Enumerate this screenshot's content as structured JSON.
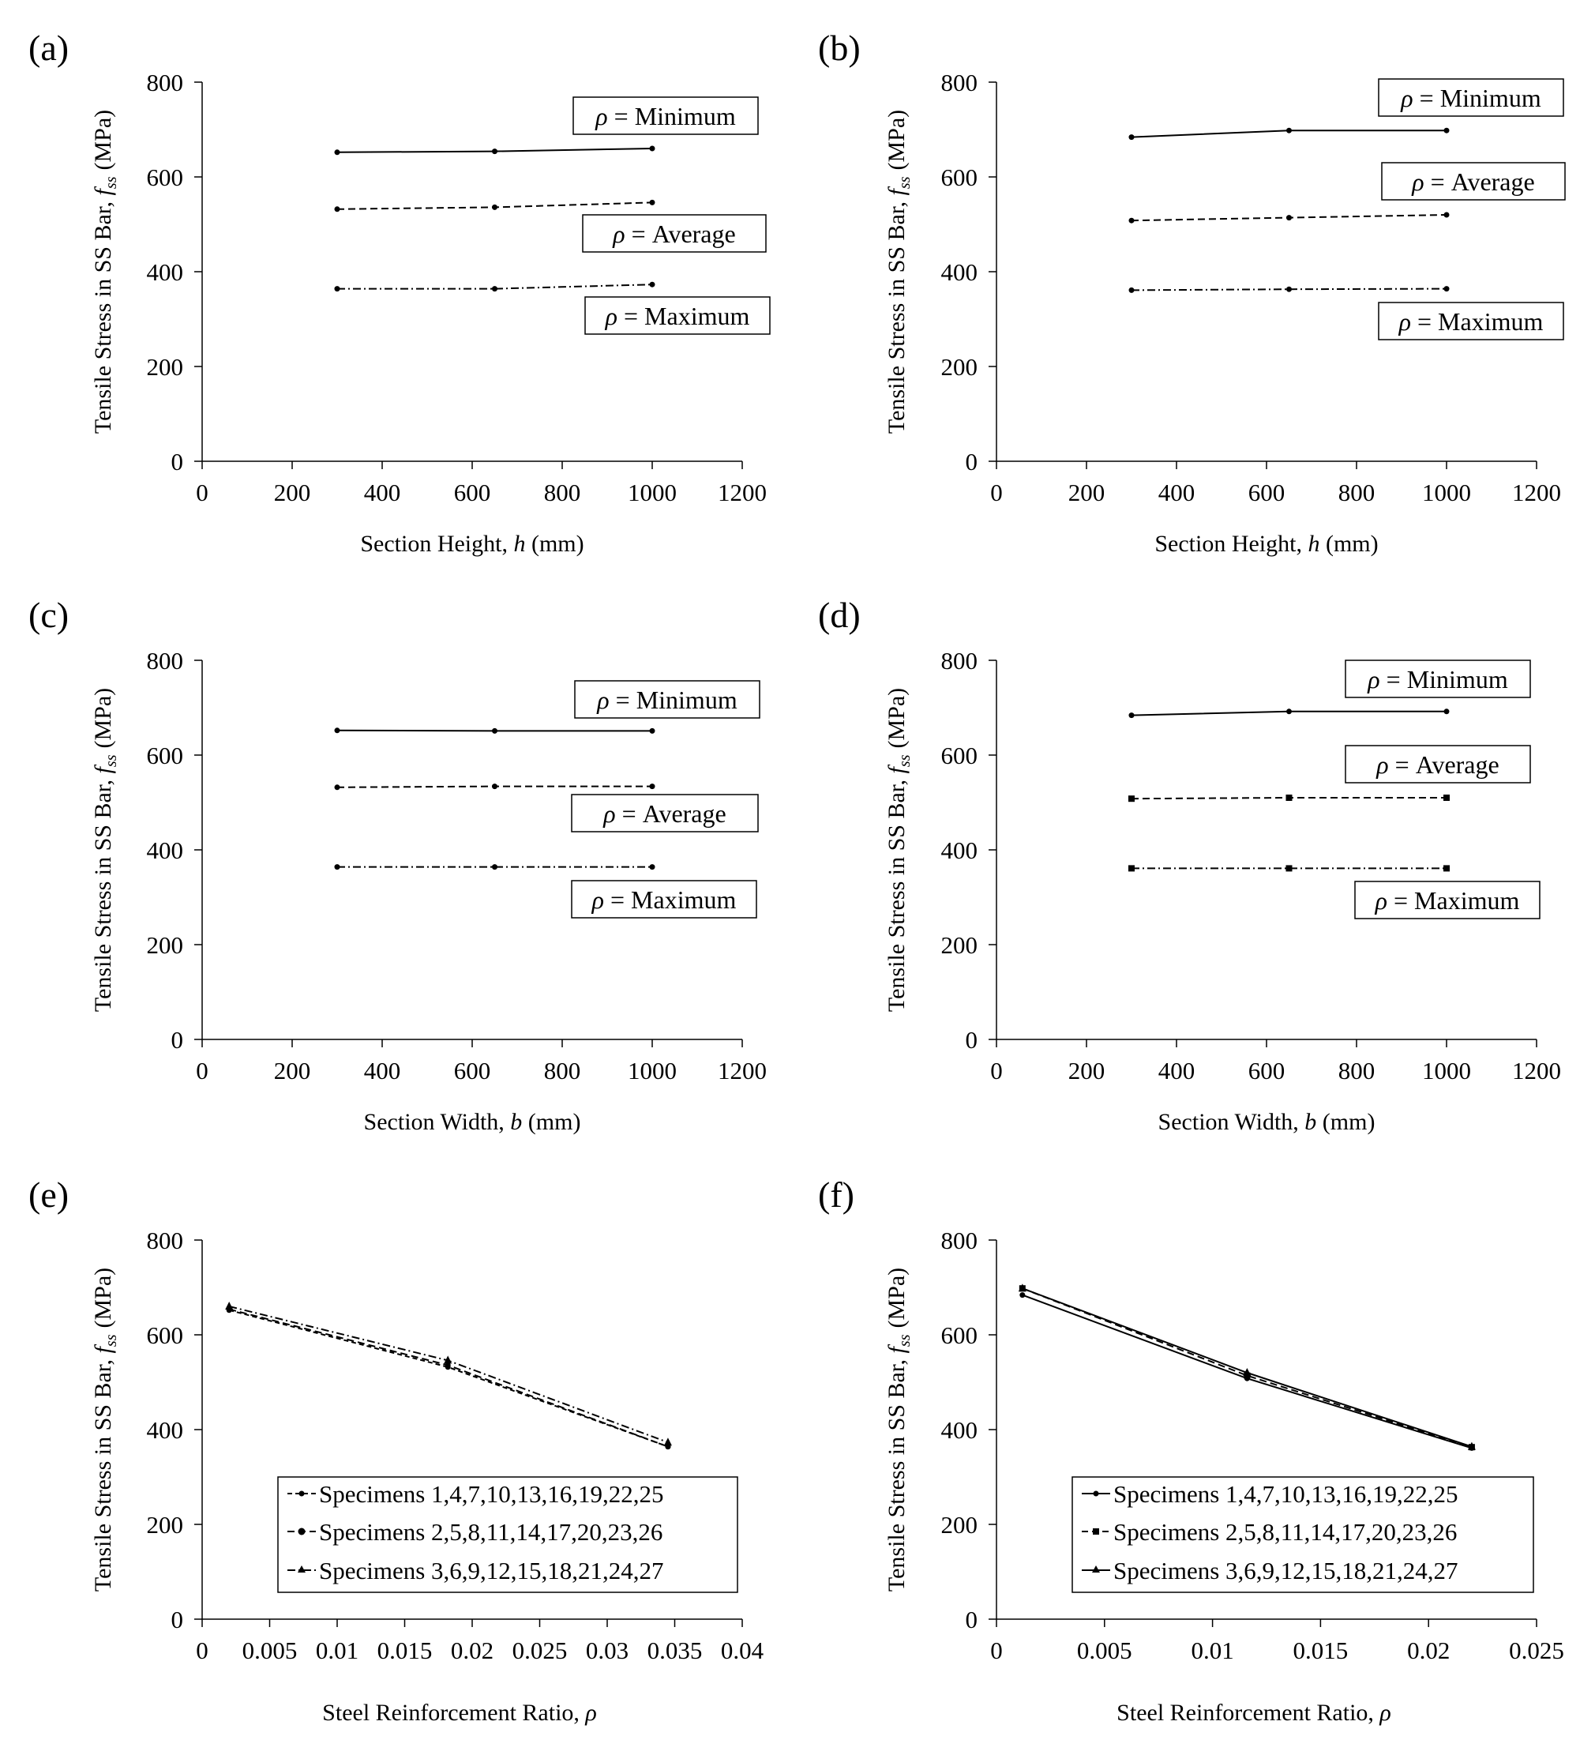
{
  "colors": {
    "ink": "#000000",
    "background": "#ffffff"
  },
  "chart_data": [
    {
      "panel_label": "(a)",
      "type": "line",
      "ylabel_main": "Tensile Stress in SS Bar,",
      "ylabel_var": "f",
      "ylabel_sub": "ss",
      "ylabel_unit": "(MPa)",
      "xlabel_main": "Section Height,",
      "xlabel_var": "h",
      "xlabel_unit": "(mm)",
      "xlim": [
        0,
        1200
      ],
      "ylim": [
        0,
        800
      ],
      "xticks": [
        0,
        200,
        400,
        600,
        800,
        1000,
        1200
      ],
      "xtick_labels": [
        "0",
        "200",
        "400",
        "600",
        "800",
        "1000",
        "1200"
      ],
      "yticks": [
        0,
        200,
        400,
        600,
        800
      ],
      "ytick_labels": [
        "0",
        "200",
        "400",
        "600",
        "800"
      ],
      "x": [
        300,
        650,
        1000
      ],
      "series": [
        {
          "name": "Minimum",
          "dash": "solid",
          "marker": "dot",
          "values": [
            652,
            654,
            660
          ]
        },
        {
          "name": "Average",
          "dash": "dash",
          "marker": "dot",
          "values": [
            532,
            536,
            546
          ]
        },
        {
          "name": "Maximum",
          "dash": "dashdot",
          "marker": "dot",
          "values": [
            364,
            364,
            373
          ]
        }
      ],
      "annotations": [
        {
          "rho": "ρ",
          "text": "= Minimum"
        },
        {
          "rho": "ρ",
          "text": "= Average"
        },
        {
          "rho": "ρ",
          "text": "= Maximum"
        }
      ],
      "legend": null
    },
    {
      "panel_label": "(b)",
      "type": "line",
      "ylabel_main": "Tensile Stress in SS Bar,",
      "ylabel_var": "f",
      "ylabel_sub": "ss",
      "ylabel_unit": "(MPa)",
      "xlabel_main": "Section Height,",
      "xlabel_var": "h",
      "xlabel_unit": "(mm)",
      "xlim": [
        0,
        1200
      ],
      "ylim": [
        0,
        800
      ],
      "xticks": [
        0,
        200,
        400,
        600,
        800,
        1000,
        1200
      ],
      "xtick_labels": [
        "0",
        "200",
        "400",
        "600",
        "800",
        "1000",
        "1200"
      ],
      "yticks": [
        0,
        200,
        400,
        600,
        800
      ],
      "ytick_labels": [
        "0",
        "200",
        "400",
        "600",
        "800"
      ],
      "x": [
        300,
        650,
        1000
      ],
      "series": [
        {
          "name": "Minimum",
          "dash": "solid",
          "marker": "dot",
          "values": [
            684,
            698,
            698
          ]
        },
        {
          "name": "Average",
          "dash": "dash",
          "marker": "dot",
          "values": [
            508,
            514,
            520
          ]
        },
        {
          "name": "Maximum",
          "dash": "dashdot",
          "marker": "dot",
          "values": [
            361,
            363,
            364
          ]
        }
      ],
      "annotations": [
        {
          "rho": "ρ",
          "text": "= Minimum"
        },
        {
          "rho": "ρ",
          "text": "= Average"
        },
        {
          "rho": "ρ",
          "text": "= Maximum"
        }
      ],
      "legend": null
    },
    {
      "panel_label": "(c)",
      "type": "line",
      "ylabel_main": "Tensile Stress in SS Bar,",
      "ylabel_var": "f",
      "ylabel_sub": "ss",
      "ylabel_unit": "(MPa)",
      "xlabel_main": "Section Width,",
      "xlabel_var": "b",
      "xlabel_unit": "(mm)",
      "xlim": [
        0,
        1200
      ],
      "ylim": [
        0,
        800
      ],
      "xticks": [
        0,
        200,
        400,
        600,
        800,
        1000,
        1200
      ],
      "xtick_labels": [
        "0",
        "200",
        "400",
        "600",
        "800",
        "1000",
        "1200"
      ],
      "yticks": [
        0,
        200,
        400,
        600,
        800
      ],
      "ytick_labels": [
        "0",
        "200",
        "400",
        "600",
        "800"
      ],
      "x": [
        300,
        650,
        1000
      ],
      "series": [
        {
          "name": "Minimum",
          "dash": "solid",
          "marker": "dot",
          "values": [
            652,
            651,
            651
          ]
        },
        {
          "name": "Average",
          "dash": "dash",
          "marker": "dot",
          "values": [
            532,
            534,
            534
          ]
        },
        {
          "name": "Maximum",
          "dash": "dashdot",
          "marker": "dot",
          "values": [
            364,
            364,
            364
          ]
        }
      ],
      "annotations": [
        {
          "rho": "ρ",
          "text": "= Minimum"
        },
        {
          "rho": "ρ",
          "text": "= Average"
        },
        {
          "rho": "ρ",
          "text": "= Maximum"
        }
      ],
      "legend": null
    },
    {
      "panel_label": "(d)",
      "type": "line",
      "ylabel_main": "Tensile Stress in SS Bar,",
      "ylabel_var": "f",
      "ylabel_sub": "ss",
      "ylabel_unit": "(MPa)",
      "xlabel_main": "Section Width,",
      "xlabel_var": "b",
      "xlabel_unit": "(mm)",
      "xlim": [
        0,
        1200
      ],
      "ylim": [
        0,
        800
      ],
      "xticks": [
        0,
        200,
        400,
        600,
        800,
        1000,
        1200
      ],
      "xtick_labels": [
        "0",
        "200",
        "400",
        "600",
        "800",
        "1000",
        "1200"
      ],
      "yticks": [
        0,
        200,
        400,
        600,
        800
      ],
      "ytick_labels": [
        "0",
        "200",
        "400",
        "600",
        "800"
      ],
      "x": [
        300,
        650,
        1000
      ],
      "series": [
        {
          "name": "Minimum",
          "dash": "solid",
          "marker": "dot",
          "values": [
            684,
            692,
            692
          ]
        },
        {
          "name": "Average",
          "dash": "dash",
          "marker": "square",
          "values": [
            508,
            510,
            510
          ]
        },
        {
          "name": "Maximum",
          "dash": "dashdot",
          "marker": "square",
          "values": [
            361,
            361,
            361
          ]
        }
      ],
      "annotations": [
        {
          "rho": "ρ",
          "text": "= Minimum"
        },
        {
          "rho": "ρ",
          "text": "= Average"
        },
        {
          "rho": "ρ",
          "text": "= Maximum"
        }
      ],
      "legend": null
    },
    {
      "panel_label": "(e)",
      "type": "line",
      "ylabel_main": "Tensile Stress in SS Bar,",
      "ylabel_var": "f",
      "ylabel_sub": "ss",
      "ylabel_unit": "(MPa)",
      "xlabel_main": "Steel Reinforcement Ratio,",
      "xlabel_var": "ρ",
      "xlabel_unit": "",
      "xlim": [
        0,
        0.04
      ],
      "ylim": [
        0,
        800
      ],
      "xticks": [
        0,
        0.005,
        0.01,
        0.015,
        0.02,
        0.025,
        0.03,
        0.035,
        0.04
      ],
      "xtick_labels": [
        "0",
        "0.005",
        "0.01",
        "0.015",
        "0.02",
        "0.025",
        "0.03",
        "0.035",
        "0.04"
      ],
      "yticks": [
        0,
        200,
        400,
        600,
        800
      ],
      "ytick_labels": [
        "0",
        "200",
        "400",
        "600",
        "800"
      ],
      "series": [
        {
          "name": "Specimens 1,4,7,10,13,16,19,22,25",
          "dash": "shortdash",
          "marker": "dot",
          "x": [
            0.002,
            0.0182,
            0.0345
          ],
          "values": [
            652,
            532,
            364
          ]
        },
        {
          "name": "Specimens 2,5,8,11,14,17,20,23,26",
          "dash": "dash",
          "marker": "dot",
          "x": [
            0.002,
            0.0182,
            0.0345
          ],
          "values": [
            654,
            536,
            364
          ]
        },
        {
          "name": "Specimens 3,6,9,12,15,18,21,24,27",
          "dash": "dashdot",
          "marker": "triangle",
          "x": [
            0.002,
            0.0182,
            0.0345
          ],
          "values": [
            660,
            546,
            373
          ]
        }
      ],
      "annotations": [],
      "legend": {
        "position": "bottom-right"
      }
    },
    {
      "panel_label": "(f)",
      "type": "line",
      "ylabel_main": "Tensile Stress in SS Bar,",
      "ylabel_var": "f",
      "ylabel_sub": "ss",
      "ylabel_unit": "(MPa)",
      "xlabel_main": "Steel Reinforcement Ratio,",
      "xlabel_var": "ρ",
      "xlabel_unit": "",
      "xlim": [
        0,
        0.025
      ],
      "ylim": [
        0,
        800
      ],
      "xticks": [
        0,
        0.005,
        0.01,
        0.015,
        0.02,
        0.025
      ],
      "xtick_labels": [
        "0",
        "0.005",
        "0.01",
        "0.015",
        "0.02",
        "0.025"
      ],
      "yticks": [
        0,
        200,
        400,
        600,
        800
      ],
      "ytick_labels": [
        "0",
        "200",
        "400",
        "600",
        "800"
      ],
      "series": [
        {
          "name": "Specimens 1,4,7,10,13,16,19,22,25",
          "dash": "solid",
          "marker": "dot",
          "x": [
            0.0012,
            0.0116,
            0.022
          ],
          "values": [
            684,
            508,
            361
          ]
        },
        {
          "name": "Specimens 2,5,8,11,14,17,20,23,26",
          "dash": "dash",
          "marker": "square",
          "x": [
            0.0012,
            0.0116,
            0.022
          ],
          "values": [
            698,
            514,
            363
          ]
        },
        {
          "name": "Specimens 3,6,9,12,15,18,21,24,27",
          "dash": "solid",
          "marker": "triangle",
          "x": [
            0.0012,
            0.0116,
            0.022
          ],
          "values": [
            698,
            520,
            364
          ]
        }
      ],
      "annotations": [],
      "legend": {
        "position": "bottom-right"
      }
    }
  ]
}
